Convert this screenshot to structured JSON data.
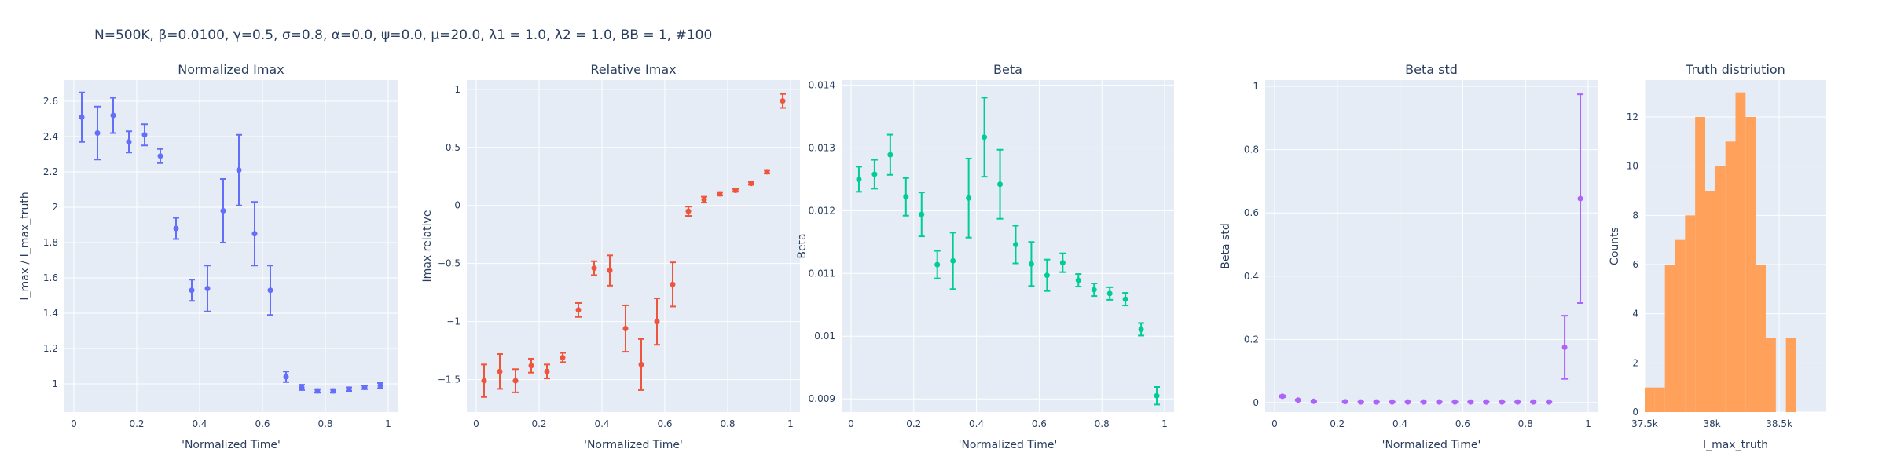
{
  "figure_title": "N=500K, β=0.0100, γ=0.5, σ=0.8,  α=0.0, ψ=0.0, μ=20.0, λ1 = 1.0, λ2 = 1.0, BB = 1, #100",
  "colors": {
    "plot_bg": "#e5ecf6",
    "grid": "#ffffff",
    "text": "#2a3f5f",
    "blue": "#636efa",
    "red": "#ef553b",
    "green": "#00cc96",
    "purple": "#ab63fa",
    "orange": "#ffa15a"
  },
  "chart_data": [
    {
      "type": "scatter",
      "title": "Normalized Imax",
      "xlabel": "'Normalized Time'",
      "ylabel": "I_max / I_max_truth",
      "xlim": [
        -0.03,
        1.03
      ],
      "ylim": [
        0.84,
        2.72
      ],
      "xticks": [
        0,
        0.2,
        0.4,
        0.6,
        0.8,
        1
      ],
      "xtick_labels": [
        "0",
        "0.2",
        "0.4",
        "0.6",
        "0.8",
        "1"
      ],
      "yticks": [
        1,
        1.2,
        1.4,
        1.6,
        1.8,
        2,
        2.2,
        2.4,
        2.6
      ],
      "ytick_labels": [
        "1",
        "1.2",
        "1.4",
        "1.6",
        "1.8",
        "2",
        "2.2",
        "2.4",
        "2.6"
      ],
      "color": "#636efa",
      "x": [
        0.025,
        0.075,
        0.125,
        0.175,
        0.225,
        0.275,
        0.325,
        0.375,
        0.425,
        0.475,
        0.525,
        0.575,
        0.625,
        0.675,
        0.725,
        0.775,
        0.825,
        0.875,
        0.925,
        0.975
      ],
      "y": [
        2.51,
        2.42,
        2.52,
        2.37,
        2.41,
        2.29,
        1.88,
        1.53,
        1.54,
        1.98,
        2.21,
        1.85,
        1.53,
        1.04,
        0.98,
        0.96,
        0.96,
        0.97,
        0.98,
        0.99
      ],
      "err": [
        0.14,
        0.15,
        0.1,
        0.06,
        0.06,
        0.04,
        0.06,
        0.06,
        0.13,
        0.18,
        0.2,
        0.18,
        0.14,
        0.03,
        0.015,
        0.01,
        0.01,
        0.01,
        0.01,
        0.015
      ]
    },
    {
      "type": "scatter",
      "title": "Relative Imax",
      "xlabel": "'Normalized Time'",
      "ylabel": "Imax relative",
      "xlim": [
        -0.03,
        1.03
      ],
      "ylim": [
        -1.78,
        1.08
      ],
      "xticks": [
        0,
        0.2,
        0.4,
        0.6,
        0.8,
        1
      ],
      "xtick_labels": [
        "0",
        "0.2",
        "0.4",
        "0.6",
        "0.8",
        "1"
      ],
      "yticks": [
        -1.5,
        -1,
        -0.5,
        0,
        0.5,
        1
      ],
      "ytick_labels": [
        "−1.5",
        "−1",
        "−0.5",
        "0",
        "0.5",
        "1"
      ],
      "color": "#ef553b",
      "x": [
        0.025,
        0.075,
        0.125,
        0.175,
        0.225,
        0.275,
        0.325,
        0.375,
        0.425,
        0.475,
        0.525,
        0.575,
        0.625,
        0.675,
        0.725,
        0.775,
        0.825,
        0.875,
        0.925,
        0.975
      ],
      "y": [
        -1.51,
        -1.43,
        -1.51,
        -1.38,
        -1.43,
        -1.31,
        -0.9,
        -0.54,
        -0.56,
        -1.06,
        -1.37,
        -1.0,
        -0.68,
        -0.05,
        0.05,
        0.1,
        0.13,
        0.19,
        0.29,
        0.9
      ],
      "err": [
        0.14,
        0.15,
        0.1,
        0.06,
        0.06,
        0.04,
        0.06,
        0.06,
        0.13,
        0.2,
        0.22,
        0.2,
        0.19,
        0.04,
        0.025,
        0.015,
        0.012,
        0.012,
        0.015,
        0.06
      ]
    },
    {
      "type": "scatter",
      "title": "Beta",
      "xlabel": "'Normalized Time'",
      "ylabel": "Beta",
      "xlim": [
        -0.03,
        1.03
      ],
      "ylim": [
        0.00879,
        0.01408
      ],
      "xticks": [
        0,
        0.2,
        0.4,
        0.6,
        0.8,
        1
      ],
      "xtick_labels": [
        "0",
        "0.2",
        "0.4",
        "0.6",
        "0.8",
        "1"
      ],
      "yticks": [
        0.009,
        0.01,
        0.011,
        0.012,
        0.013,
        0.014
      ],
      "ytick_labels": [
        "0.009",
        "0.01",
        "0.011",
        "0.012",
        "0.013",
        "0.014"
      ],
      "color": "#00cc96",
      "x": [
        0.025,
        0.075,
        0.125,
        0.175,
        0.225,
        0.275,
        0.325,
        0.375,
        0.425,
        0.475,
        0.525,
        0.575,
        0.625,
        0.675,
        0.725,
        0.775,
        0.825,
        0.875,
        0.925,
        0.975
      ],
      "y": [
        0.0125,
        0.01258,
        0.01289,
        0.01222,
        0.01194,
        0.01114,
        0.0112,
        0.0122,
        0.01317,
        0.01242,
        0.01146,
        0.01115,
        0.01097,
        0.01117,
        0.01089,
        0.01074,
        0.01068,
        0.01059,
        0.01011,
        0.00905
      ],
      "err": [
        0.0002,
        0.00023,
        0.00032,
        0.0003,
        0.00035,
        0.00022,
        0.00045,
        0.00063,
        0.00063,
        0.00055,
        0.0003,
        0.00035,
        0.00025,
        0.00015,
        0.0001,
        0.0001,
        0.0001,
        0.0001,
        0.0001,
        0.00014
      ]
    },
    {
      "type": "scatter",
      "title": "Beta std",
      "xlabel": "'Normalized Time'",
      "ylabel": "Beta std",
      "xlim": [
        -0.03,
        1.03
      ],
      "ylim": [
        -0.03,
        1.02
      ],
      "xticks": [
        0,
        0.2,
        0.4,
        0.6,
        0.8,
        1
      ],
      "xtick_labels": [
        "0",
        "0.2",
        "0.4",
        "0.6",
        "0.8",
        "1"
      ],
      "yticks": [
        0,
        0.2,
        0.4,
        0.6,
        0.8,
        1
      ],
      "ytick_labels": [
        "0",
        "0.2",
        "0.4",
        "0.6",
        "0.8",
        "1"
      ],
      "color": "#ab63fa",
      "x": [
        0.025,
        0.075,
        0.125,
        0.225,
        0.275,
        0.325,
        0.375,
        0.425,
        0.475,
        0.525,
        0.575,
        0.625,
        0.675,
        0.725,
        0.775,
        0.825,
        0.875,
        0.925,
        0.975
      ],
      "y": [
        0.02,
        0.008,
        0.004,
        0.003,
        0.002,
        0.002,
        0.002,
        0.002,
        0.002,
        0.002,
        0.002,
        0.002,
        0.002,
        0.002,
        0.002,
        0.002,
        0.002,
        0.175,
        0.645
      ],
      "err": [
        0.003,
        0.002,
        0.002,
        0.001,
        0.001,
        0.001,
        0.001,
        0.001,
        0.001,
        0.001,
        0.001,
        0.001,
        0.001,
        0.001,
        0.001,
        0.001,
        0.001,
        0.1,
        0.33
      ]
    },
    {
      "type": "bar",
      "title": "Truth distriution",
      "xlabel": "I_max_truth",
      "ylabel": "Counts",
      "xlim": [
        37500,
        38850
      ],
      "ylim": [
        0,
        13.5
      ],
      "xticks": [
        37500,
        38000,
        38500
      ],
      "xtick_labels": [
        "37.5k",
        "38k",
        "38.5k"
      ],
      "yticks": [
        0,
        2,
        4,
        6,
        8,
        10,
        12
      ],
      "ytick_labels": [
        "0",
        "2",
        "4",
        "6",
        "8",
        "10",
        "12"
      ],
      "color": "#ffa15a",
      "bin_start": 37500,
      "bin_width": 75,
      "counts": [
        1,
        1,
        6,
        7,
        8,
        12,
        9,
        10,
        11,
        13,
        12,
        6,
        3,
        0,
        3
      ]
    }
  ]
}
